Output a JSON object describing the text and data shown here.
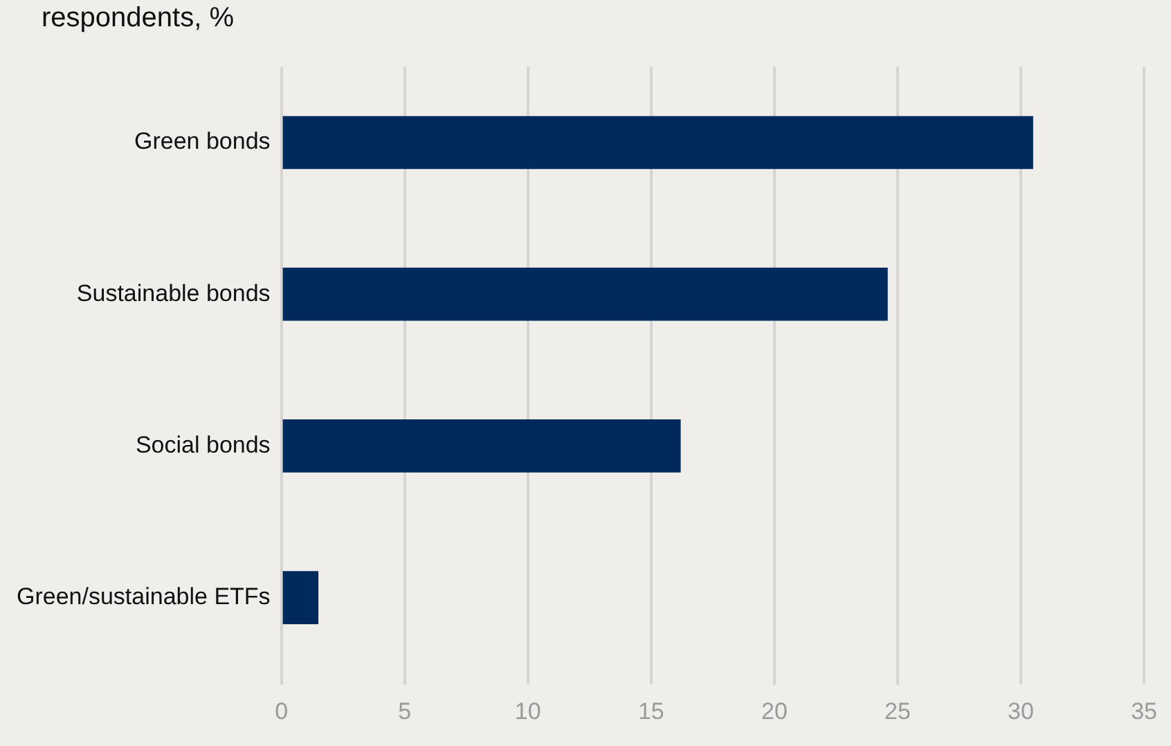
{
  "chart_data": {
    "type": "bar",
    "orientation": "horizontal",
    "title": "respondents, %",
    "categories": [
      "Green bonds",
      "Sustainable bonds",
      "Social bonds",
      "Green/sustainable ETFs"
    ],
    "values": [
      30.5,
      24.6,
      16.2,
      1.5
    ],
    "color": "#002a5c",
    "xlim": [
      0,
      35
    ],
    "xticks": [
      0,
      5,
      10,
      15,
      20,
      25,
      30,
      35
    ],
    "grid": "x",
    "legend": false
  }
}
